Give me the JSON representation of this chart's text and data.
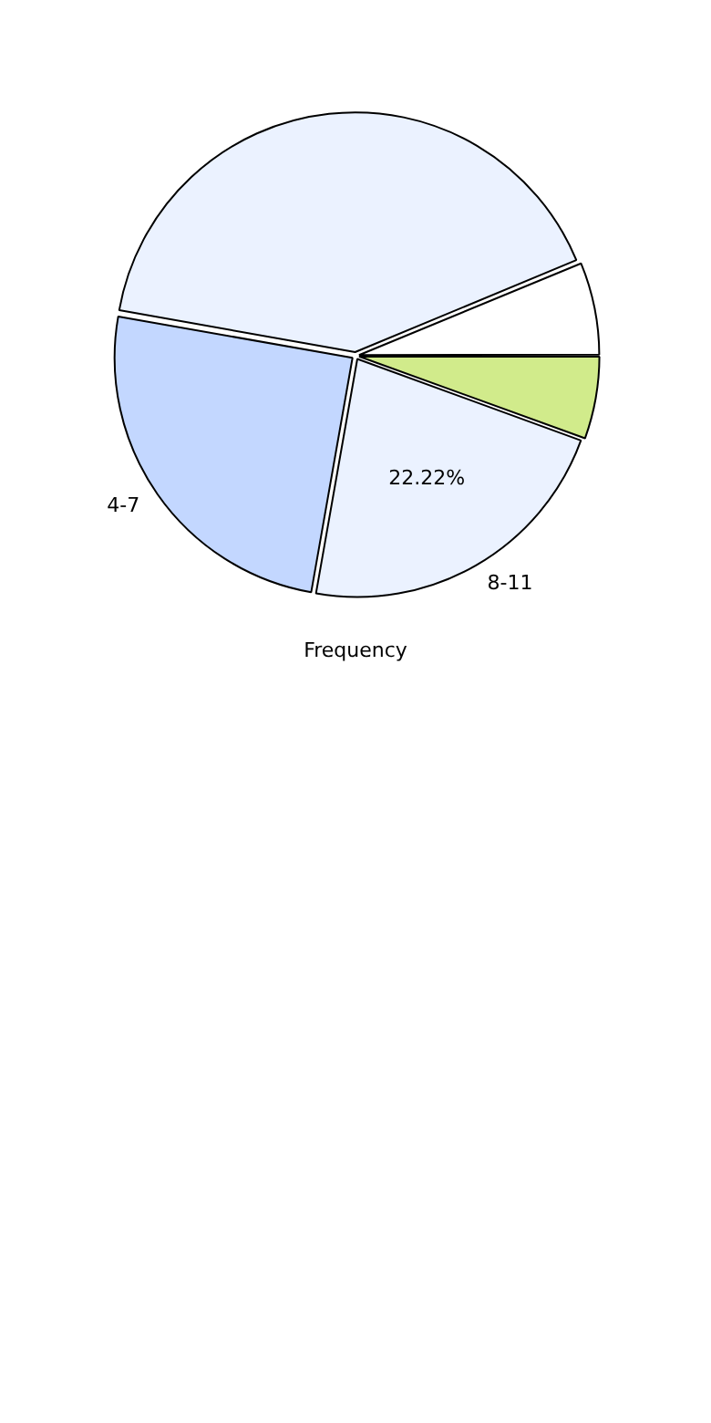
{
  "chart_data": {
    "type": "pie",
    "xlabel": "Frequency",
    "categories": [
      null,
      "8-11",
      "4-7",
      null,
      null
    ],
    "values": [
      5.56,
      22.22,
      25.0,
      40.97,
      6.25
    ],
    "colors": [
      "#d1eb8b",
      "#ebf2ff",
      "#c3d7ff",
      "#ebf2ff",
      "#ffffff"
    ],
    "value_labels": [
      null,
      "22.22%",
      null,
      null,
      null
    ],
    "legend": false
  }
}
